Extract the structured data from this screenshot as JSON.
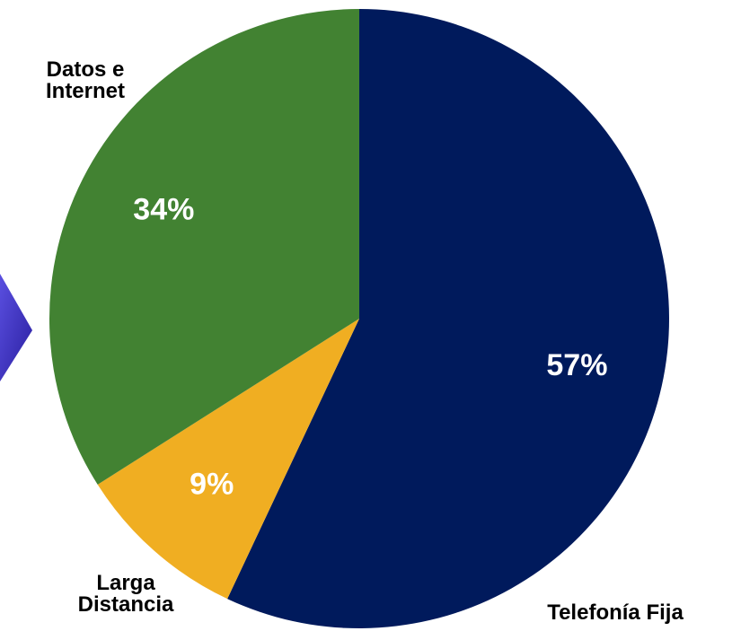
{
  "chart_data": {
    "type": "pie",
    "categories": [
      "Telefonía Fija",
      "Larga Distancia",
      "Datos e Internet"
    ],
    "values": [
      57,
      9,
      34
    ],
    "value_labels": [
      "57%",
      "9%",
      "34%"
    ],
    "colors": [
      "#001a5c",
      "#f0ae22",
      "#428232"
    ]
  }
}
